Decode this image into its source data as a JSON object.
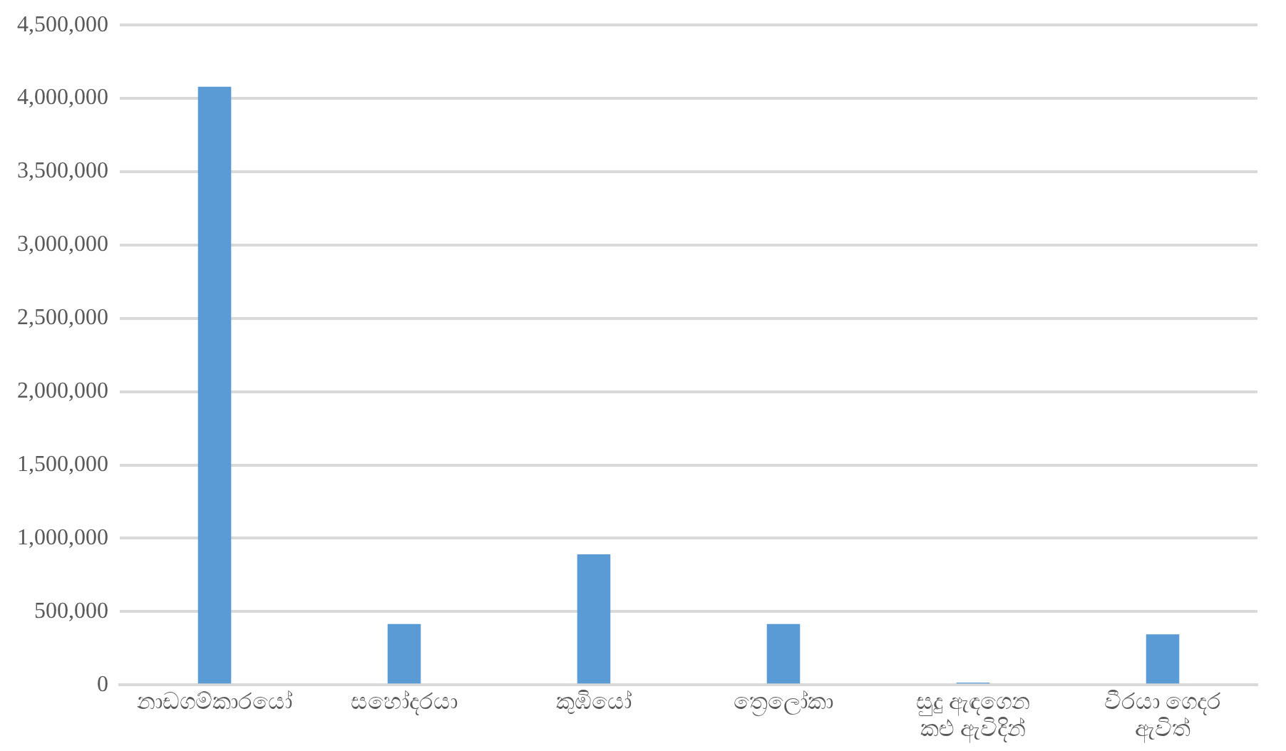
{
  "chart_data": {
    "type": "bar",
    "categories": [
      "නාඩගම්කාරයෝ",
      "සහෝදරයා",
      "කුඹියෝ",
      "ත්‍රෙලෝකා",
      "සුදු ඇඳගෙන කළු ඇවිදින්",
      "වීරයා ගෙදර ඇවිත්"
    ],
    "values": [
      4080000,
      415000,
      890000,
      415000,
      15000,
      345000
    ],
    "color": "#5b9bd5",
    "ylim": [
      0,
      4500000
    ],
    "yticks": [
      {
        "value": 0,
        "label": "0"
      },
      {
        "value": 500000,
        "label": "500,000"
      },
      {
        "value": 1000000,
        "label": "1,000,000"
      },
      {
        "value": 1500000,
        "label": "1,500,000"
      },
      {
        "value": 2000000,
        "label": "2,000,000"
      },
      {
        "value": 2500000,
        "label": "2,500,000"
      },
      {
        "value": 3000000,
        "label": "3,000,000"
      },
      {
        "value": 3500000,
        "label": "3,500,000"
      },
      {
        "value": 4000000,
        "label": "4,000,000"
      },
      {
        "value": 4500000,
        "label": "4,500,000"
      }
    ],
    "grid": "y",
    "legend": false
  }
}
